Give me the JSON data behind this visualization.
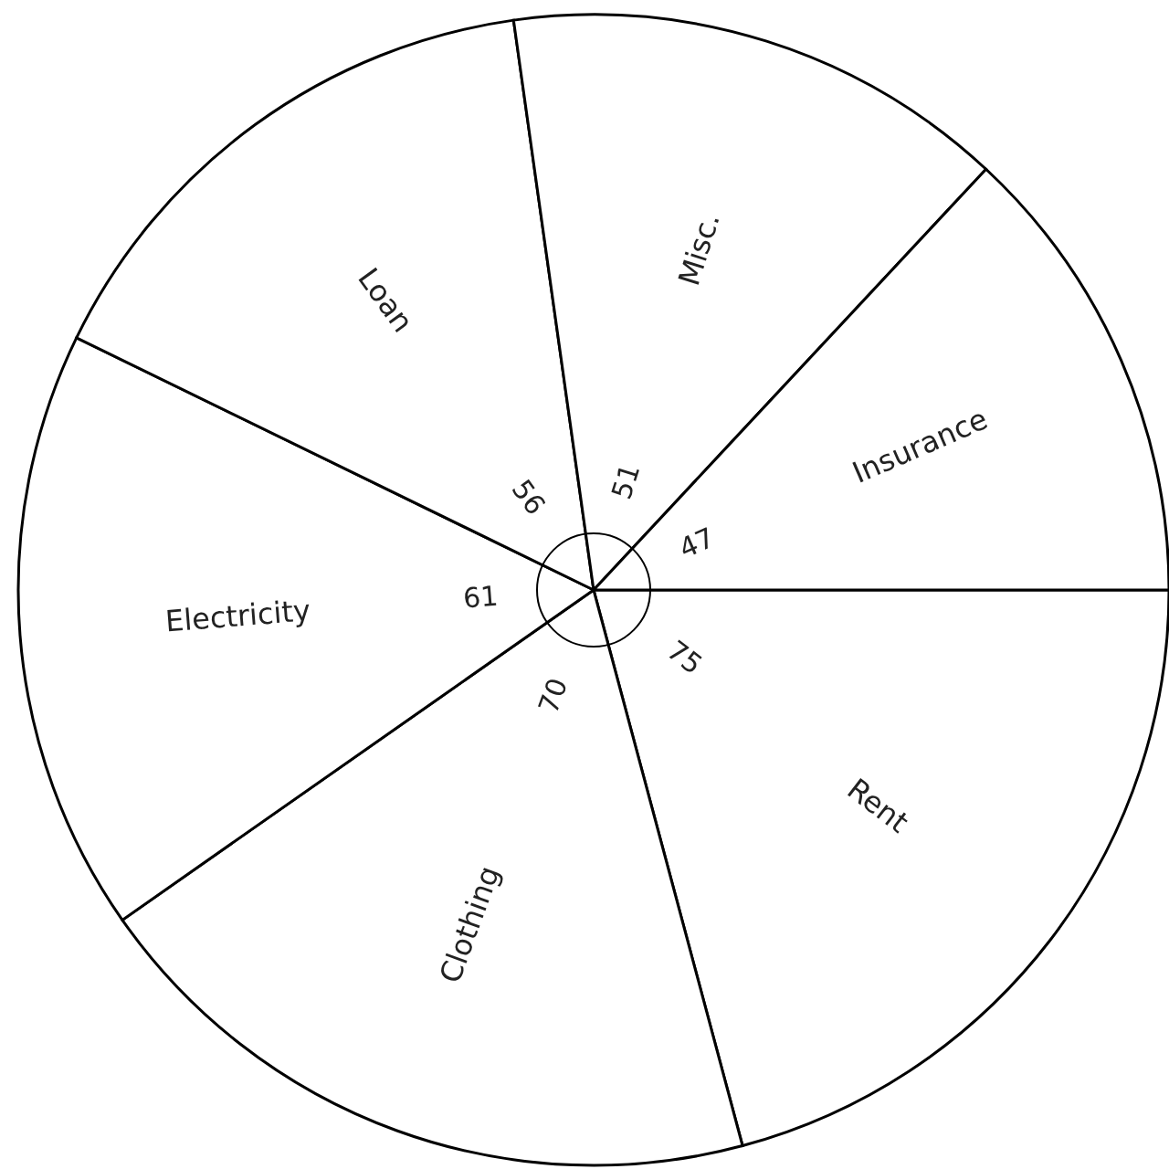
{
  "chart_data": {
    "type": "pie",
    "categories": [
      "Rent",
      "Clothing",
      "Electricity",
      "Loan",
      "Misc.",
      "Insurance"
    ],
    "values": [
      75,
      70,
      61,
      56,
      51,
      47
    ],
    "colors": [
      "#ffffff",
      "#ffffff",
      "#ffffff",
      "#ffffff",
      "#ffffff",
      "#ffffff"
    ],
    "data_labels": true
  }
}
